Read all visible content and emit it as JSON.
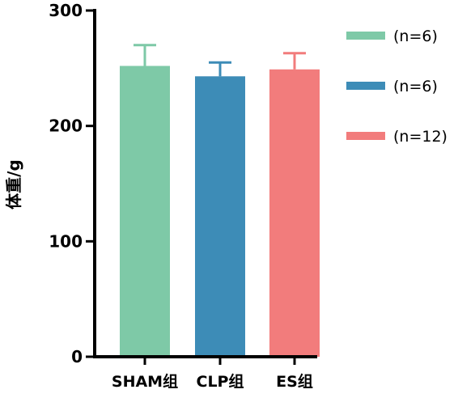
{
  "chart_data": {
    "type": "bar",
    "categories": [
      "SHAM组",
      "CLP组",
      "ES组"
    ],
    "values": [
      252,
      243,
      249
    ],
    "error_upper": [
      270,
      255,
      263
    ],
    "colors": [
      "#7ec9a7",
      "#3d8cb7",
      "#f27c7c"
    ],
    "title": "",
    "xlabel": "",
    "ylabel": "体重/g",
    "ylim": [
      0,
      300
    ],
    "yticks": [
      "0",
      "100",
      "200",
      "300"
    ],
    "legend": {
      "placement": "right",
      "entries": [
        "(n=6)",
        "(n=6)",
        "(n=12)"
      ]
    },
    "grid": false
  }
}
